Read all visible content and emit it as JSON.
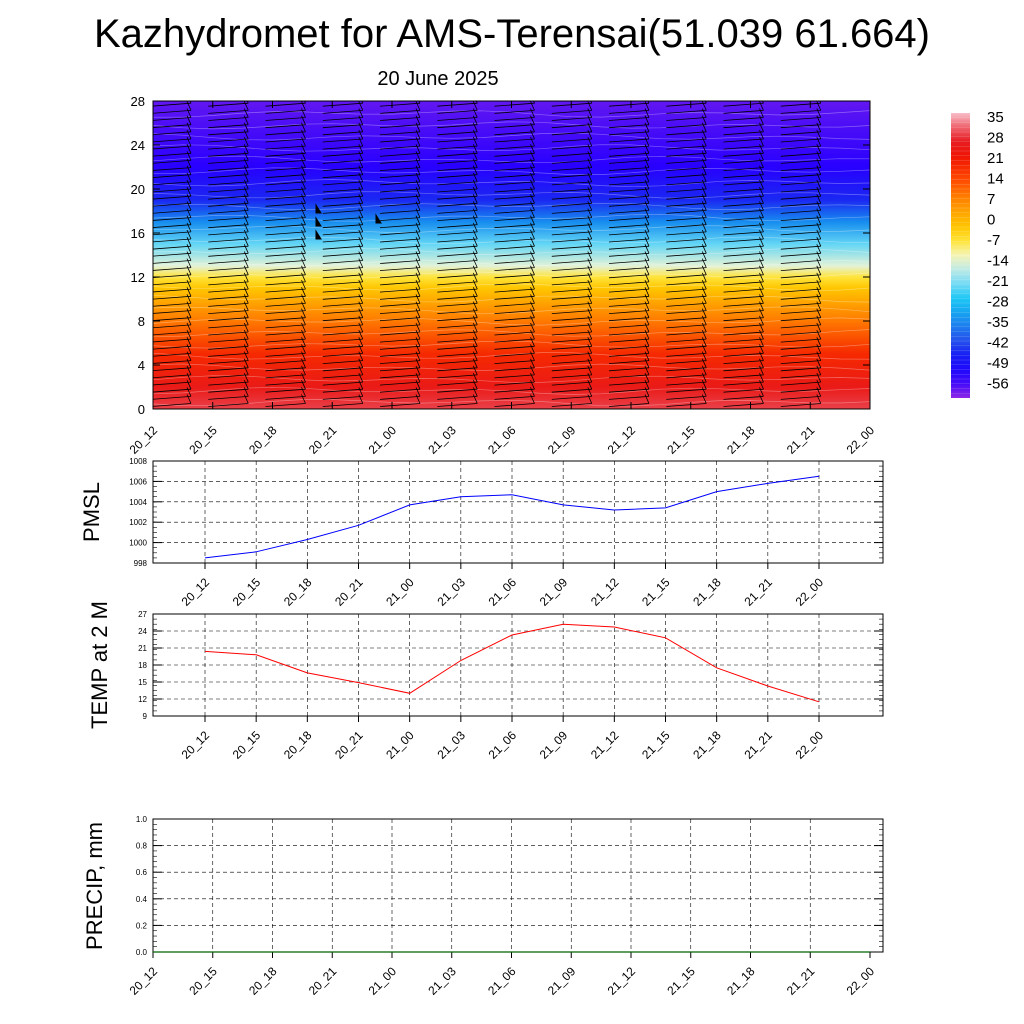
{
  "title": "Kazhydromet for AMS-Terensai(51.039 61.664)",
  "subtitle": "20 June 2025",
  "chart_data": [
    {
      "type": "heatmap",
      "name": "upper-air temperature cross-section with wind barbs",
      "x_categories": [
        "20_12",
        "20_15",
        "20_18",
        "20_21",
        "21_00",
        "21_03",
        "21_06",
        "21_09",
        "21_12",
        "21_15",
        "21_18",
        "21_21",
        "22_00"
      ],
      "y_ticks": [
        0,
        4,
        8,
        12,
        16,
        20,
        24,
        28
      ],
      "ylim": [
        0,
        28
      ],
      "colorbar": {
        "labels": [
          "35",
          "28",
          "21",
          "14",
          "7",
          "0",
          "-7",
          "-14",
          "-21",
          "-28",
          "-35",
          "-42",
          "-49",
          "-56"
        ],
        "range": [
          -63,
          37
        ]
      },
      "temperature_profile": [
        {
          "level": 0,
          "value": 30
        },
        {
          "level": 2,
          "value": 25
        },
        {
          "level": 5,
          "value": 18
        },
        {
          "level": 8,
          "value": 8
        },
        {
          "level": 11,
          "value": -3
        },
        {
          "level": 12,
          "value": -8
        },
        {
          "level": 13,
          "value": -15
        },
        {
          "level": 15,
          "value": -24
        },
        {
          "level": 17,
          "value": -36
        },
        {
          "level": 19,
          "value": -47
        },
        {
          "level": 22,
          "value": -56
        },
        {
          "level": 25,
          "value": -58
        },
        {
          "level": 28,
          "value": -60
        }
      ]
    },
    {
      "type": "line",
      "ylabel": "PMSL",
      "categories": [
        "20_12",
        "20_15",
        "20_18",
        "20_21",
        "21_00",
        "21_03",
        "21_06",
        "21_09",
        "21_12",
        "21_15",
        "21_18",
        "21_21",
        "22_00"
      ],
      "y_ticks": [
        998,
        1000,
        1002,
        1004,
        1006,
        1008
      ],
      "ylim": [
        998,
        1008
      ],
      "series": [
        {
          "values": [
            998.5,
            999.1,
            1000.3,
            1001.7,
            1003.7,
            1004.5,
            1004.7,
            1003.7,
            1003.2,
            1003.4,
            1005.0,
            1005.8,
            1006.5
          ]
        }
      ],
      "color": "#0000ff",
      "grid": true
    },
    {
      "type": "line",
      "ylabel": "TEMP at 2 M",
      "categories": [
        "20_12",
        "20_15",
        "20_18",
        "20_21",
        "21_00",
        "21_03",
        "21_06",
        "21_09",
        "21_12",
        "21_15",
        "21_18",
        "21_21",
        "22_00"
      ],
      "y_ticks": [
        9,
        12,
        15,
        18,
        21,
        24,
        27
      ],
      "ylim": [
        9,
        27
      ],
      "series": [
        {
          "values": [
            20.4,
            19.8,
            16.6,
            14.9,
            13.0,
            18.8,
            23.3,
            25.2,
            24.7,
            22.8,
            17.5,
            14.3,
            11.5
          ]
        }
      ],
      "color": "#ff0000",
      "grid": true
    },
    {
      "type": "line",
      "ylabel": "PRECIP, mm",
      "categories": [
        "20_12",
        "20_15",
        "20_18",
        "20_21",
        "21_00",
        "21_03",
        "21_06",
        "21_09",
        "21_12",
        "21_15",
        "21_18",
        "21_21",
        "22_00"
      ],
      "y_ticks": [
        "0.0",
        "0.2",
        "0.4",
        "0.6",
        "0.8",
        "1.0"
      ],
      "ylim": [
        0,
        1
      ],
      "series": [
        {
          "values": [
            0,
            0,
            0,
            0,
            0,
            0,
            0,
            0,
            0,
            0,
            0,
            0,
            0
          ]
        }
      ],
      "color": "#006400",
      "grid": true
    }
  ]
}
